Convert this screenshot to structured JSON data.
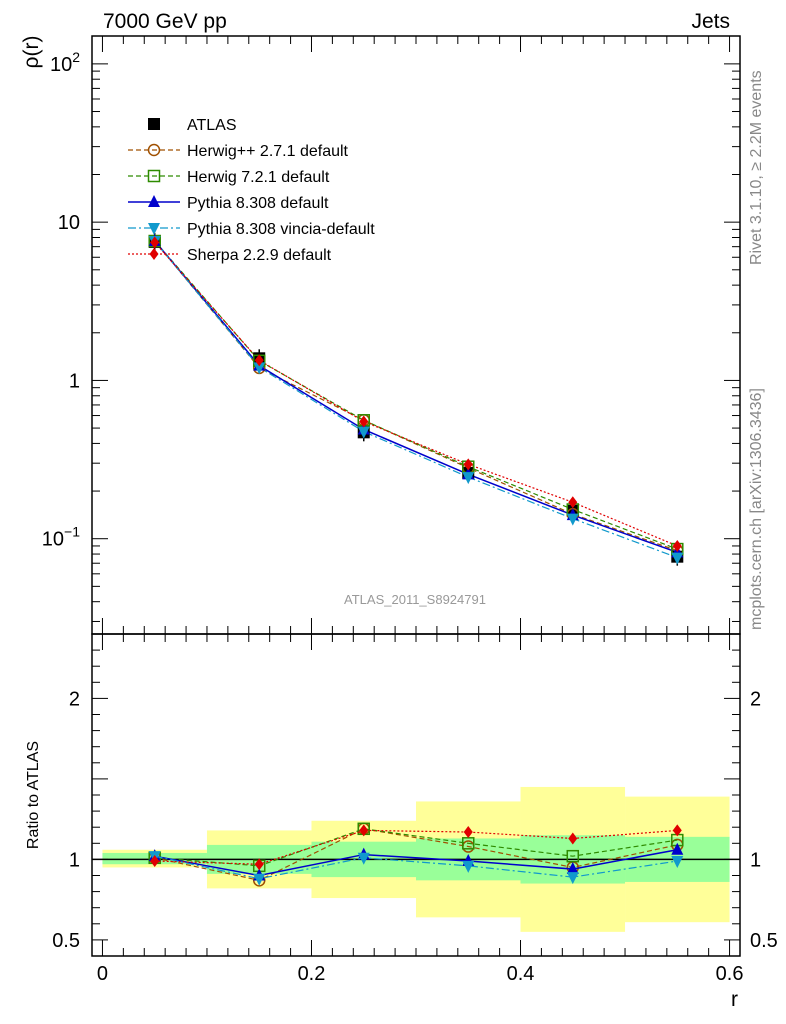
{
  "header": {
    "left": "7000 GeV pp",
    "right": "Jets"
  },
  "side": {
    "top": "Rivet 3.1.10, ≥ 2.2M events",
    "bottom": "mcplots.cern.ch [arXiv:1306.3436]"
  },
  "watermark": "ATLAS_2011_S8924791",
  "colors": {
    "data": "#000000",
    "herwigpp": "#a05000",
    "herwig7": "#2e8b00",
    "pythia": "#0000cc",
    "vincia": "#1199cc",
    "sherpa": "#e00000",
    "band_inner": "#99ff99",
    "band_outer": "#ffff99"
  },
  "chart_data": [
    {
      "type": "line",
      "title": "",
      "ylabel": "ρ(r)",
      "xlabel": "",
      "yscale": "log",
      "ylim": [
        0.025,
        150
      ],
      "xlim": [
        -0.01,
        0.61
      ],
      "yticks": [
        {
          "value": 100,
          "base": "10",
          "exp": "2"
        },
        {
          "value": 10,
          "base": "10",
          "exp": ""
        },
        {
          "value": 1,
          "base": "1",
          "exp": ""
        },
        {
          "value": 0.1,
          "base": "10",
          "exp": "−1"
        }
      ],
      "x": [
        0.05,
        0.15,
        0.25,
        0.35,
        0.45,
        0.55
      ],
      "series": [
        {
          "key": "atlas",
          "name": "ATLAS",
          "values": [
            7.5,
            1.38,
            0.47,
            0.26,
            0.15,
            0.077
          ]
        },
        {
          "key": "herwigpp",
          "name": "Herwig++ 2.7.1 default",
          "values": [
            7.6,
            1.2,
            0.56,
            0.28,
            0.143,
            0.084
          ]
        },
        {
          "key": "herwig7",
          "name": "Herwig 7.2.1 default",
          "values": [
            7.6,
            1.33,
            0.56,
            0.285,
            0.153,
            0.086
          ]
        },
        {
          "key": "pythia",
          "name": "Pythia 8.308 default",
          "values": [
            7.6,
            1.24,
            0.49,
            0.255,
            0.141,
            0.082
          ]
        },
        {
          "key": "vincia",
          "name": "Pythia 8.308 vincia-default",
          "values": [
            7.6,
            1.21,
            0.475,
            0.245,
            0.134,
            0.076
          ]
        },
        {
          "key": "sherpa",
          "name": "Sherpa 2.2.9 default",
          "values": [
            7.45,
            1.34,
            0.55,
            0.295,
            0.17,
            0.09
          ]
        }
      ]
    },
    {
      "type": "line",
      "title": "",
      "ylabel": "Ratio to ATLAS",
      "xlabel": "r",
      "ylim": [
        0.4,
        2.4
      ],
      "xlim": [
        -0.01,
        0.61
      ],
      "xticks": [
        {
          "value": 0,
          "label": "0"
        },
        {
          "value": 0.2,
          "label": "0.2"
        },
        {
          "value": 0.4,
          "label": "0.4"
        },
        {
          "value": 0.6,
          "label": "0.6"
        }
      ],
      "yticks": [
        {
          "value": 2,
          "label": "2"
        },
        {
          "value": 1,
          "label": "1"
        },
        {
          "value": 0.5,
          "label": "0.5"
        }
      ],
      "x": [
        0.05,
        0.15,
        0.25,
        0.35,
        0.45,
        0.55
      ],
      "bands": [
        {
          "x0": 0.0,
          "x1": 0.1,
          "inner": [
            0.97,
            1.04
          ],
          "outer": [
            0.95,
            1.06
          ]
        },
        {
          "x0": 0.1,
          "x1": 0.2,
          "inner": [
            0.91,
            1.09
          ],
          "outer": [
            0.82,
            1.18
          ]
        },
        {
          "x0": 0.2,
          "x1": 0.3,
          "inner": [
            0.89,
            1.11
          ],
          "outer": [
            0.76,
            1.24
          ]
        },
        {
          "x0": 0.3,
          "x1": 0.4,
          "inner": [
            0.87,
            1.13
          ],
          "outer": [
            0.64,
            1.36
          ]
        },
        {
          "x0": 0.4,
          "x1": 0.5,
          "inner": [
            0.85,
            1.15
          ],
          "outer": [
            0.55,
            1.45
          ]
        },
        {
          "x0": 0.5,
          "x1": 0.6,
          "inner": [
            0.86,
            1.14
          ],
          "outer": [
            0.61,
            1.39
          ]
        }
      ],
      "series": [
        {
          "key": "herwigpp",
          "name": "Herwig++ 2.7.1 default",
          "values": [
            1.01,
            0.87,
            1.19,
            1.08,
            0.95,
            1.09
          ]
        },
        {
          "key": "herwig7",
          "name": "Herwig 7.2.1 default",
          "values": [
            1.01,
            0.96,
            1.19,
            1.1,
            1.02,
            1.12
          ]
        },
        {
          "key": "pythia",
          "name": "Pythia 8.308 default",
          "values": [
            1.02,
            0.9,
            1.03,
            0.99,
            0.94,
            1.06
          ]
        },
        {
          "key": "vincia",
          "name": "Pythia 8.308 vincia-default",
          "values": [
            1.02,
            0.88,
            1.01,
            0.96,
            0.89,
            0.99
          ]
        },
        {
          "key": "sherpa",
          "name": "Sherpa 2.2.9 default",
          "values": [
            0.99,
            0.97,
            1.18,
            1.17,
            1.13,
            1.18
          ]
        }
      ]
    }
  ]
}
